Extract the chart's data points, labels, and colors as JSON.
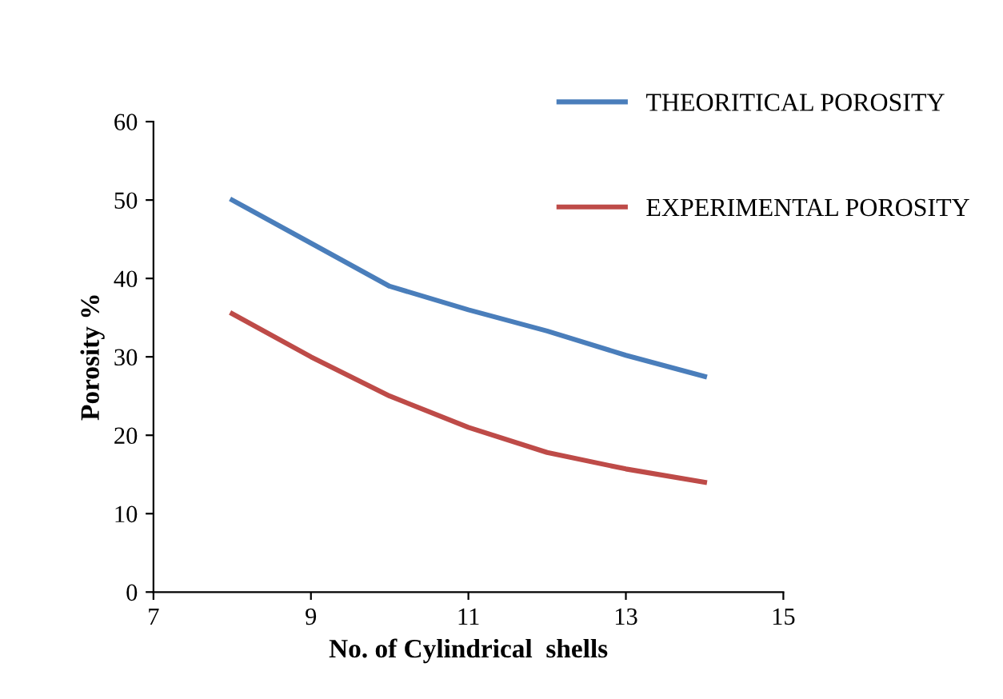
{
  "chart_data": {
    "type": "line",
    "xlabel": "No. of Cylindrical  shells",
    "ylabel": "Porosity %",
    "x": [
      8,
      9,
      10,
      11,
      12,
      13,
      14
    ],
    "series": [
      {
        "name": "THEORITICAL POROSITY",
        "color": "#4a7ebb",
        "values": [
          50,
          44.5,
          39,
          36,
          33.3,
          30.2,
          27.5
        ]
      },
      {
        "name": "EXPERIMENTAL POROSITY",
        "color": "#be4b48",
        "values": [
          35.5,
          30,
          25,
          21,
          17.8,
          15.7,
          14
        ]
      }
    ],
    "xlim": [
      7,
      15
    ],
    "xticks": [
      7,
      9,
      11,
      13,
      15
    ],
    "ylim": [
      0,
      60
    ],
    "yticks": [
      0,
      10,
      20,
      30,
      40,
      50,
      60
    ],
    "grid": false,
    "legend": "top right",
    "marker": "none",
    "line_style": "solid"
  }
}
